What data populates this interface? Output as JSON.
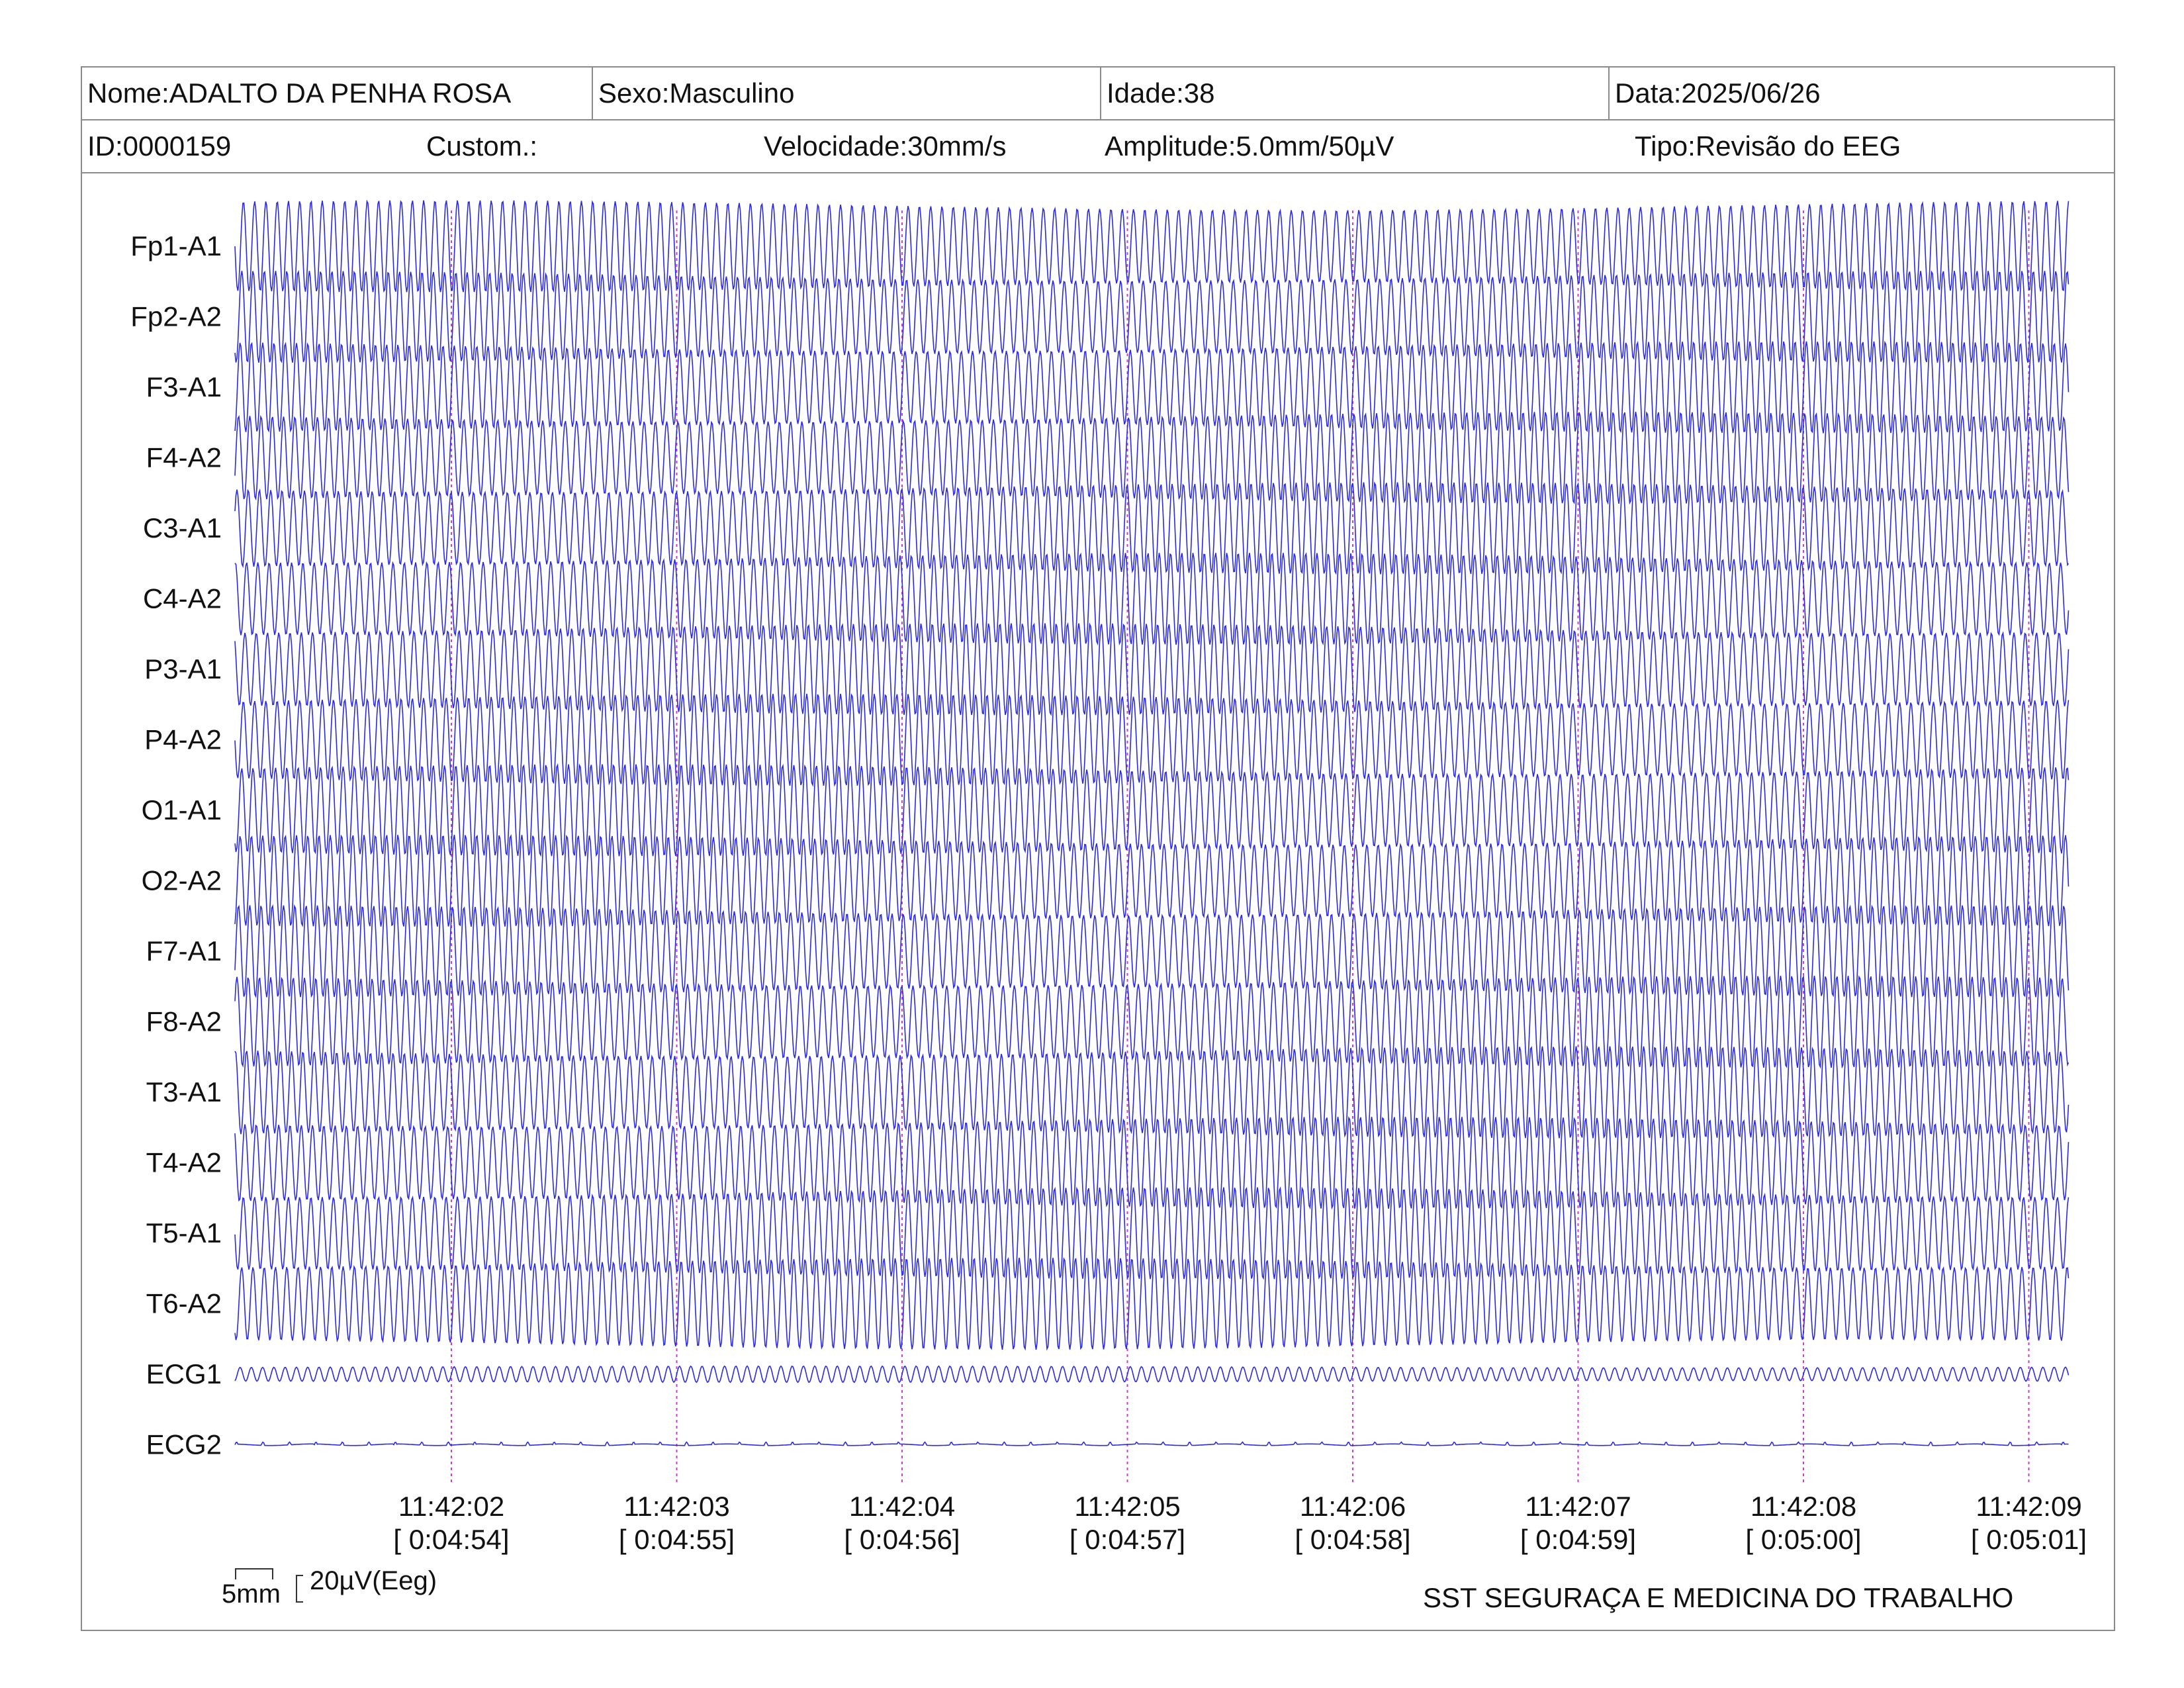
{
  "header": {
    "nome": "Nome:ADALTO DA PENHA ROSA",
    "sexo": "Sexo:Masculino",
    "idade": "Idade:38",
    "data": "Data:2025/06/26",
    "id": "ID:0000159",
    "custom": "Custom.:",
    "velocidade": "Velocidade:30mm/s",
    "amplitude": "Amplitude:5.0mm/50µV",
    "tipo": "Tipo:Revisão do EEG"
  },
  "scale": {
    "horizontal": "5mm",
    "vertical": "20µV(Eeg)"
  },
  "footer": "SST SEGURAÇA E MEDICINA DO TRABALHO",
  "colors": {
    "trace": "#2a2ae6",
    "time_marker": "#d23ad2",
    "border": "#8a8a8a"
  },
  "chart_data": {
    "type": "line",
    "title": "",
    "channels": [
      "Fp1-A1",
      "Fp2-A2",
      "F3-A1",
      "F4-A2",
      "C3-A1",
      "C4-A2",
      "P3-A1",
      "P4-A2",
      "O1-A1",
      "O2-A2",
      "F7-A1",
      "F8-A2",
      "T3-A1",
      "T4-A2",
      "T5-A1",
      "T6-A2",
      "ECG1",
      "ECG2"
    ],
    "time_markers": [
      {
        "clock": "11:42:02",
        "elapsed": "[ 0:04:54]"
      },
      {
        "clock": "11:42:03",
        "elapsed": "[ 0:04:55]"
      },
      {
        "clock": "11:42:04",
        "elapsed": "[ 0:04:56]"
      },
      {
        "clock": "11:42:05",
        "elapsed": "[ 0:04:57]"
      },
      {
        "clock": "11:42:06",
        "elapsed": "[ 0:04:58]"
      },
      {
        "clock": "11:42:07",
        "elapsed": "[ 0:04:59]"
      },
      {
        "clock": "11:42:08",
        "elapsed": "[ 0:05:00]"
      },
      {
        "clock": "11:42:09",
        "elapsed": "[ 0:05:01]"
      }
    ],
    "x_range_seconds": [
      -1,
      7.2
    ],
    "cycles_per_second": 20,
    "traces": [
      {
        "channel": "Fp1-A1",
        "amplitude": "large"
      },
      {
        "channel": "Fp2-A2",
        "amplitude": "large"
      },
      {
        "channel": "F3-A1",
        "amplitude": "large"
      },
      {
        "channel": "F4-A2",
        "amplitude": "large"
      },
      {
        "channel": "C3-A1",
        "amplitude": "large"
      },
      {
        "channel": "C4-A2",
        "amplitude": "large"
      },
      {
        "channel": "P3-A1",
        "amplitude": "large"
      },
      {
        "channel": "P4-A2",
        "amplitude": "large"
      },
      {
        "channel": "O1-A1",
        "amplitude": "large"
      },
      {
        "channel": "O2-A2",
        "amplitude": "large"
      },
      {
        "channel": "F7-A1",
        "amplitude": "large"
      },
      {
        "channel": "F8-A2",
        "amplitude": "large"
      },
      {
        "channel": "T3-A1",
        "amplitude": "large"
      },
      {
        "channel": "T4-A2",
        "amplitude": "large"
      },
      {
        "channel": "T5-A1",
        "amplitude": "large"
      },
      {
        "channel": "T6-A2",
        "amplitude": "large"
      },
      {
        "channel": "ECG1",
        "amplitude": "small"
      },
      {
        "channel": "ECG2",
        "amplitude": "minimal"
      }
    ]
  }
}
